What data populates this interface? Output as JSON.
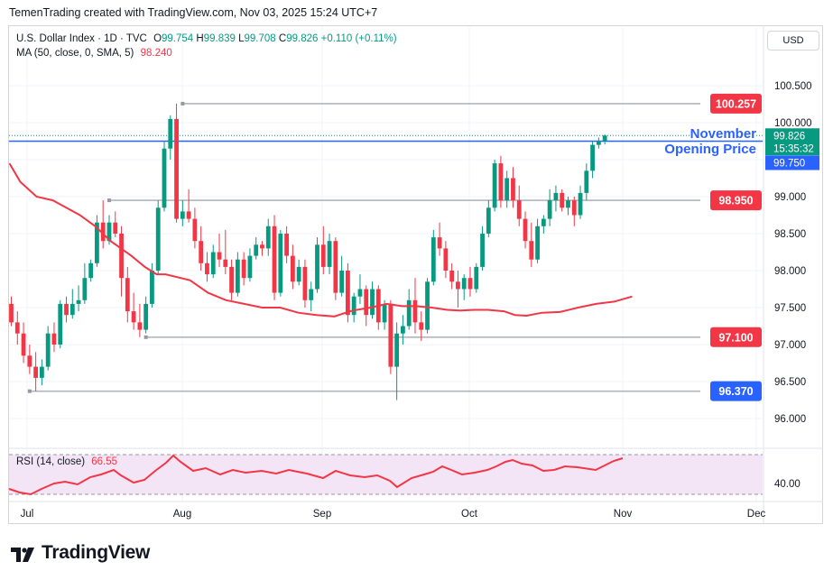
{
  "header": {
    "credit": "TemenTrading created with TradingView.com, Nov 03, 2025 15:24 UTC+7"
  },
  "legend": {
    "symbol": "U.S. Dollar Index · 1D · TVC",
    "o_label": "O",
    "o": "99.754",
    "h_label": "H",
    "h": "99.839",
    "l_label": "L",
    "l": "99.708",
    "c_label": "C",
    "c": "99.826",
    "change": "+0.110 (+0.11%)",
    "ma_label": "MA (50, close, 0, SMA, 5)",
    "ma_value": "98.240"
  },
  "currency": "USD",
  "rsi": {
    "label": "RSI (14, close)",
    "value": "66.55",
    "axis_label": "40.00",
    "color": "#f23645",
    "bg": "#f3e5f5"
  },
  "annotation": {
    "line1": "November",
    "line2": "Opening Price",
    "color": "#2962ff"
  },
  "logo": {
    "text": "TradingView"
  },
  "colors": {
    "up": "#089981",
    "down": "#f23645",
    "ma": "#f23645",
    "level": "#b2b5be",
    "blue": "#2962ff",
    "grid": "#f0f3fa"
  },
  "chart_data": {
    "type": "candlestick",
    "title": "U.S. Dollar Index · 1D · TVC",
    "ylim": [
      95.6,
      101.0
    ],
    "yticks": [
      "100.500",
      "100.000",
      "99.500",
      "99.000",
      "98.500",
      "98.000",
      "97.500",
      "97.000",
      "96.500",
      "96.000"
    ],
    "xticks": [
      "Jul",
      "Aug",
      "Sep",
      "Oct",
      "Nov",
      "Dec"
    ],
    "levels": [
      {
        "value": 100.257,
        "label": "100.257",
        "color": "#f23645",
        "from": 28
      },
      {
        "value": 98.95,
        "label": "98.950",
        "color": "#f23645",
        "from": 16
      },
      {
        "value": 97.1,
        "label": "97.100",
        "color": "#f23645",
        "from": 22
      },
      {
        "value": 96.37,
        "label": "96.370",
        "color": "#2962ff",
        "from": 3
      }
    ],
    "opening_line": {
      "value": 99.75,
      "label": "99.750"
    },
    "last_price": {
      "value": 99.826,
      "label": "99.826",
      "countdown": "15:35:32"
    },
    "candles": [
      [
        97.55,
        97.65,
        97.25,
        97.3
      ],
      [
        97.3,
        97.45,
        97.0,
        97.15
      ],
      [
        97.15,
        97.3,
        96.75,
        96.85
      ],
      [
        96.85,
        97.0,
        96.6,
        96.7
      ],
      [
        96.7,
        96.9,
        96.37,
        96.55
      ],
      [
        96.55,
        96.8,
        96.45,
        96.7
      ],
      [
        96.7,
        97.25,
        96.65,
        97.15
      ],
      [
        97.15,
        97.3,
        96.9,
        97.0
      ],
      [
        97.0,
        97.6,
        96.95,
        97.55
      ],
      [
        97.55,
        97.65,
        97.3,
        97.4
      ],
      [
        97.4,
        97.75,
        97.35,
        97.55
      ],
      [
        97.55,
        97.8,
        97.45,
        97.6
      ],
      [
        97.6,
        98.1,
        97.55,
        97.9
      ],
      [
        97.9,
        98.15,
        97.85,
        98.1
      ],
      [
        98.1,
        98.75,
        98.05,
        98.65
      ],
      [
        98.65,
        98.95,
        98.3,
        98.4
      ],
      [
        98.4,
        98.75,
        98.35,
        98.65
      ],
      [
        98.65,
        98.8,
        98.45,
        98.5
      ],
      [
        98.5,
        98.6,
        97.65,
        97.9
      ],
      [
        97.9,
        98.05,
        97.3,
        97.45
      ],
      [
        97.45,
        97.7,
        97.2,
        97.3
      ],
      [
        97.3,
        97.55,
        97.1,
        97.2
      ],
      [
        97.2,
        97.65,
        97.15,
        97.55
      ],
      [
        97.55,
        98.1,
        97.5,
        98.0
      ],
      [
        98.0,
        98.95,
        97.95,
        98.85
      ],
      [
        98.85,
        99.75,
        98.8,
        99.65
      ],
      [
        99.65,
        100.1,
        99.5,
        100.05
      ],
      [
        100.05,
        100.257,
        98.65,
        98.7
      ],
      [
        98.7,
        98.95,
        98.6,
        98.8
      ],
      [
        98.8,
        99.1,
        98.65,
        98.7
      ],
      [
        98.7,
        98.85,
        98.3,
        98.4
      ],
      [
        98.4,
        98.6,
        98.0,
        98.1
      ],
      [
        98.1,
        98.25,
        97.85,
        97.95
      ],
      [
        97.95,
        98.35,
        97.9,
        98.25
      ],
      [
        98.25,
        98.5,
        98.05,
        98.15
      ],
      [
        98.15,
        98.55,
        97.95,
        98.05
      ],
      [
        98.05,
        98.15,
        97.6,
        97.7
      ],
      [
        97.7,
        98.25,
        97.65,
        98.15
      ],
      [
        98.15,
        98.25,
        97.8,
        97.9
      ],
      [
        97.9,
        98.3,
        97.85,
        98.2
      ],
      [
        98.2,
        98.45,
        98.15,
        98.35
      ],
      [
        98.35,
        98.4,
        98.2,
        98.3
      ],
      [
        98.3,
        98.7,
        98.2,
        98.6
      ],
      [
        98.6,
        98.75,
        97.6,
        97.7
      ],
      [
        97.7,
        98.55,
        97.65,
        98.5
      ],
      [
        98.5,
        98.6,
        98.1,
        98.2
      ],
      [
        98.2,
        98.35,
        97.75,
        97.85
      ],
      [
        97.85,
        98.15,
        97.8,
        98.05
      ],
      [
        98.05,
        98.15,
        97.5,
        97.6
      ],
      [
        97.6,
        97.85,
        97.45,
        97.75
      ],
      [
        97.75,
        98.45,
        97.7,
        98.35
      ],
      [
        98.35,
        98.6,
        97.95,
        98.05
      ],
      [
        98.05,
        98.5,
        97.95,
        98.4
      ],
      [
        98.4,
        98.45,
        97.6,
        97.7
      ],
      [
        97.7,
        98.2,
        97.65,
        98.0
      ],
      [
        98.0,
        98.1,
        97.3,
        97.4
      ],
      [
        97.4,
        97.7,
        97.3,
        97.65
      ],
      [
        97.65,
        97.95,
        97.55,
        97.75
      ],
      [
        97.75,
        97.8,
        97.25,
        97.4
      ],
      [
        97.4,
        97.85,
        97.35,
        97.75
      ],
      [
        97.75,
        97.8,
        97.2,
        97.3
      ],
      [
        97.3,
        97.6,
        97.2,
        97.55
      ],
      [
        97.55,
        97.6,
        96.6,
        96.7
      ],
      [
        96.7,
        97.3,
        96.25,
        97.15
      ],
      [
        97.15,
        97.4,
        97.0,
        97.25
      ],
      [
        97.25,
        97.75,
        97.2,
        97.6
      ],
      [
        97.6,
        97.9,
        97.15,
        97.3
      ],
      [
        97.3,
        97.45,
        97.05,
        97.2
      ],
      [
        97.2,
        97.9,
        97.15,
        97.85
      ],
      [
        97.85,
        98.55,
        97.8,
        98.45
      ],
      [
        98.45,
        98.65,
        98.2,
        98.3
      ],
      [
        98.3,
        98.4,
        97.9,
        98.0
      ],
      [
        98.0,
        98.1,
        97.75,
        97.85
      ],
      [
        97.85,
        98.0,
        97.5,
        97.75
      ],
      [
        97.75,
        97.95,
        97.6,
        97.9
      ],
      [
        97.9,
        98.05,
        97.65,
        97.75
      ],
      [
        97.75,
        98.1,
        97.7,
        98.05
      ],
      [
        98.05,
        98.6,
        98.0,
        98.5
      ],
      [
        98.5,
        98.95,
        98.45,
        98.85
      ],
      [
        98.85,
        99.5,
        98.8,
        99.45
      ],
      [
        99.45,
        99.55,
        98.85,
        98.95
      ],
      [
        98.95,
        99.35,
        98.85,
        99.25
      ],
      [
        99.25,
        99.4,
        98.85,
        98.95
      ],
      [
        98.95,
        99.15,
        98.6,
        98.7
      ],
      [
        98.7,
        98.8,
        98.3,
        98.4
      ],
      [
        98.4,
        98.65,
        98.05,
        98.15
      ],
      [
        98.15,
        98.7,
        98.1,
        98.6
      ],
      [
        98.6,
        98.75,
        98.5,
        98.7
      ],
      [
        98.7,
        99.1,
        98.6,
        98.95
      ],
      [
        98.95,
        99.15,
        98.8,
        99.05
      ],
      [
        99.05,
        99.1,
        98.8,
        98.85
      ],
      [
        98.85,
        99.0,
        98.75,
        98.95
      ],
      [
        98.95,
        99.0,
        98.6,
        98.75
      ],
      [
        98.75,
        99.15,
        98.7,
        99.05
      ],
      [
        99.05,
        99.45,
        98.95,
        99.35
      ],
      [
        99.35,
        99.75,
        99.25,
        99.7
      ],
      [
        99.7,
        99.8,
        99.65,
        99.754
      ],
      [
        99.754,
        99.839,
        99.708,
        99.826
      ]
    ],
    "ma": [
      [
        0,
        99.45
      ],
      [
        12,
        99.2
      ],
      [
        30,
        99.0
      ],
      [
        48,
        98.95
      ],
      [
        63,
        98.85
      ],
      [
        78,
        98.75
      ],
      [
        95,
        98.6
      ],
      [
        112,
        98.4
      ],
      [
        135,
        98.2
      ],
      [
        150,
        98.05
      ],
      [
        163,
        97.95
      ],
      [
        173,
        97.95
      ],
      [
        200,
        97.87
      ],
      [
        220,
        97.7
      ],
      [
        240,
        97.6
      ],
      [
        260,
        97.55
      ],
      [
        280,
        97.5
      ],
      [
        300,
        97.5
      ],
      [
        320,
        97.43
      ],
      [
        340,
        97.4
      ],
      [
        360,
        97.38
      ],
      [
        380,
        97.46
      ],
      [
        400,
        97.5
      ],
      [
        418,
        97.55
      ],
      [
        435,
        97.52
      ],
      [
        450,
        97.52
      ],
      [
        468,
        97.5
      ],
      [
        485,
        97.47
      ],
      [
        500,
        97.46
      ],
      [
        515,
        97.47
      ],
      [
        530,
        97.47
      ],
      [
        548,
        97.45
      ],
      [
        560,
        97.4
      ],
      [
        573,
        97.39
      ],
      [
        590,
        97.43
      ],
      [
        610,
        97.44
      ],
      [
        630,
        97.5
      ],
      [
        650,
        97.55
      ],
      [
        670,
        97.58
      ],
      [
        690,
        97.65
      ]
    ],
    "rsi_series": [
      [
        10,
        542
      ],
      [
        22,
        546
      ],
      [
        34,
        548
      ],
      [
        46,
        542
      ],
      [
        60,
        536
      ],
      [
        72,
        534
      ],
      [
        86,
        537
      ],
      [
        100,
        529
      ],
      [
        112,
        526
      ],
      [
        126,
        521
      ],
      [
        134,
        527
      ],
      [
        148,
        535
      ],
      [
        160,
        532
      ],
      [
        172,
        522
      ],
      [
        184,
        513
      ],
      [
        192,
        505
      ],
      [
        200,
        512
      ],
      [
        214,
        522
      ],
      [
        228,
        519
      ],
      [
        244,
        526
      ],
      [
        258,
        521
      ],
      [
        272,
        524
      ],
      [
        290,
        522
      ],
      [
        306,
        525
      ],
      [
        320,
        521
      ],
      [
        340,
        525
      ],
      [
        358,
        530
      ],
      [
        372,
        522
      ],
      [
        388,
        527
      ],
      [
        404,
        529
      ],
      [
        418,
        527
      ],
      [
        432,
        533
      ],
      [
        440,
        540
      ],
      [
        456,
        530
      ],
      [
        470,
        526
      ],
      [
        480,
        523
      ],
      [
        490,
        517
      ],
      [
        500,
        521
      ],
      [
        512,
        526
      ],
      [
        526,
        524
      ],
      [
        540,
        521
      ],
      [
        550,
        517
      ],
      [
        560,
        512
      ],
      [
        568,
        510
      ],
      [
        578,
        514
      ],
      [
        590,
        516
      ],
      [
        602,
        522
      ],
      [
        614,
        521
      ],
      [
        626,
        517
      ],
      [
        640,
        518
      ],
      [
        660,
        521
      ],
      [
        672,
        515
      ],
      [
        680,
        511
      ],
      [
        690,
        508
      ]
    ]
  }
}
